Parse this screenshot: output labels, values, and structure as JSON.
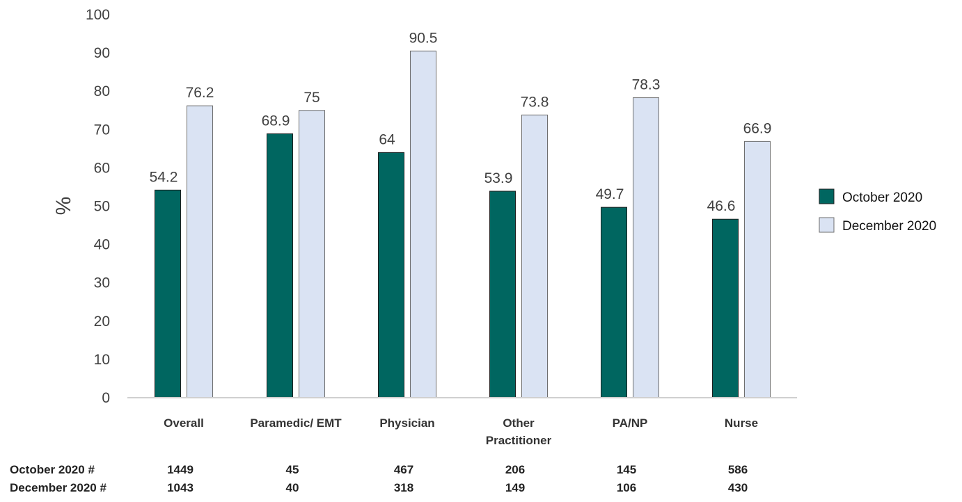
{
  "chart_data": {
    "type": "bar",
    "title": "",
    "xlabel": "",
    "ylabel": "%",
    "ylim": [
      0,
      100
    ],
    "yticks": [
      0,
      10,
      20,
      30,
      40,
      50,
      60,
      70,
      80,
      90,
      100
    ],
    "grid": false,
    "legend_position": "right",
    "categories": [
      [
        "Overall"
      ],
      [
        "Paramedic/ EMT"
      ],
      [
        "Physician"
      ],
      [
        "Other",
        "Practitioner"
      ],
      [
        "PA/NP"
      ],
      [
        "Nurse"
      ]
    ],
    "series": [
      {
        "name": "October 2020",
        "color": "#006660",
        "values": [
          54.2,
          68.9,
          64,
          53.9,
          49.7,
          46.6
        ]
      },
      {
        "name": "December 2020",
        "color": "#dae3f3",
        "values": [
          76.2,
          75,
          90.5,
          73.8,
          78.3,
          66.9
        ]
      }
    ],
    "counts": [
      {
        "label": "October 2020 #",
        "values": [
          "1449",
          "45",
          "467",
          "206",
          "145",
          "586"
        ]
      },
      {
        "label": "December 2020 #",
        "values": [
          "1043",
          "40",
          "318",
          "149",
          "106",
          "430"
        ]
      }
    ]
  }
}
